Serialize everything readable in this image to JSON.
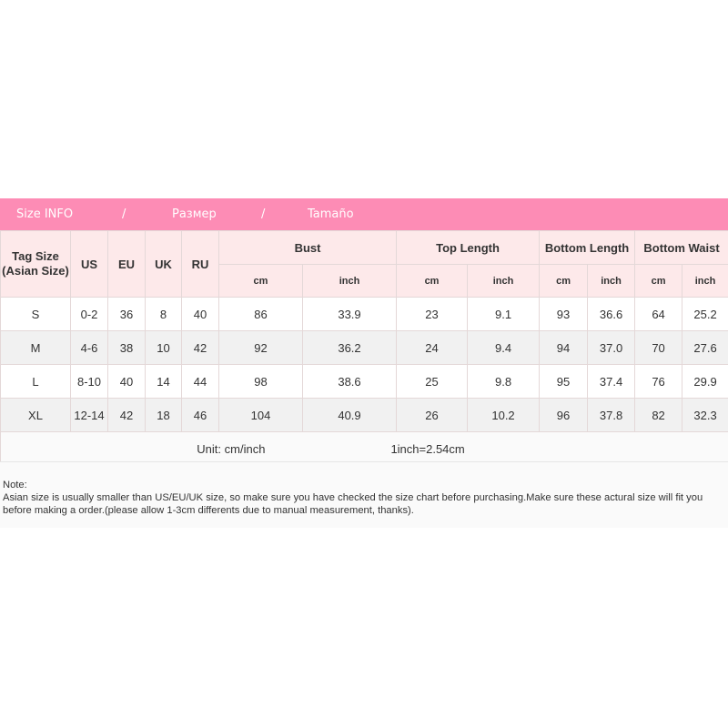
{
  "banner": {
    "left": "Size INFO",
    "sep": "/",
    "middle": "Размер",
    "right": "Tamaño"
  },
  "headers": {
    "tag": "Tag Size\n(Asian Size)",
    "us": "US",
    "eu": "EU",
    "uk": "UK",
    "ru": "RU",
    "groups": [
      "Bust",
      "Top Length",
      "Bottom Length",
      "Bottom Waist"
    ],
    "cm": "cm",
    "inch": "inch"
  },
  "rows": [
    [
      "S",
      "0-2",
      "36",
      "8",
      "40",
      "86",
      "33.9",
      "23",
      "9.1",
      "93",
      "36.6",
      "64",
      "25.2"
    ],
    [
      "M",
      "4-6",
      "38",
      "10",
      "42",
      "92",
      "36.2",
      "24",
      "9.4",
      "94",
      "37.0",
      "70",
      "27.6"
    ],
    [
      "L",
      "8-10",
      "40",
      "14",
      "44",
      "98",
      "38.6",
      "25",
      "9.8",
      "95",
      "37.4",
      "76",
      "29.9"
    ],
    [
      "XL",
      "12-14",
      "42",
      "18",
      "46",
      "104",
      "40.9",
      "26",
      "10.2",
      "96",
      "37.8",
      "82",
      "32.3"
    ]
  ],
  "unit": {
    "label": "Unit: cm/inch",
    "conversion": "1inch=2.54cm"
  },
  "note": {
    "title": "Note:",
    "text": "Asian size is usually smaller than US/EU/UK size, so make sure you have checked the size chart before purchasing.Make sure these actural size will fit you before making a order.(please allow 1-3cm differents due to manual measurement, thanks)."
  },
  "colors": {
    "banner": "#fd8cb5",
    "header": "#fde9ea"
  }
}
